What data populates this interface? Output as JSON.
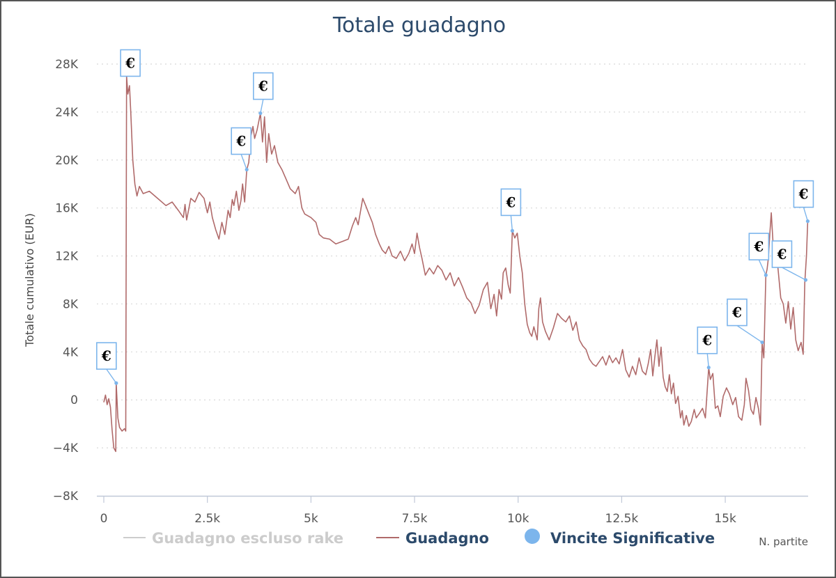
{
  "chart_data": {
    "type": "line",
    "title": "Totale guadagno",
    "ylabel": "Totale cumulativo (EUR)",
    "xlabel": "N. partite",
    "xlim": [
      0,
      17000
    ],
    "ylim": [
      -8000,
      28000
    ],
    "x_ticks": [
      0,
      2500,
      5000,
      7500,
      10000,
      12500,
      15000
    ],
    "x_tick_labels": [
      "0",
      "2.5k",
      "5k",
      "7.5k",
      "10k",
      "12.5k",
      "15k"
    ],
    "y_ticks": [
      -8000,
      -4000,
      0,
      4000,
      8000,
      12000,
      16000,
      20000,
      24000,
      28000
    ],
    "y_tick_labels": [
      "−8K",
      "−4K",
      "0",
      "4K",
      "8K",
      "12K",
      "16K",
      "20K",
      "24K",
      "28K"
    ],
    "grid": "horizontal dotted",
    "colors": {
      "guadagno": "#b06a6a",
      "excluded": "#cccccc",
      "flags": "#7cb5ec",
      "title": "#2c4a6b"
    },
    "legend": {
      "position": "bottom",
      "items": [
        {
          "label": "Guadagno escluso rake",
          "state": "hidden"
        },
        {
          "label": "Guadagno",
          "state": "visible"
        },
        {
          "label": "Vincite Significative",
          "state": "visible"
        }
      ]
    },
    "series": [
      {
        "name": "Guadagno",
        "points": [
          [
            0,
            -200
          ],
          [
            40,
            400
          ],
          [
            80,
            -400
          ],
          [
            120,
            100
          ],
          [
            160,
            -600
          ],
          [
            200,
            -2500
          ],
          [
            240,
            -4000
          ],
          [
            290,
            -4300
          ],
          [
            300,
            1400
          ],
          [
            340,
            -1500
          ],
          [
            380,
            -2300
          ],
          [
            440,
            -2600
          ],
          [
            500,
            -2400
          ],
          [
            530,
            -2600
          ],
          [
            550,
            27000
          ],
          [
            580,
            25500
          ],
          [
            620,
            26200
          ],
          [
            650,
            24000
          ],
          [
            700,
            20000
          ],
          [
            750,
            18000
          ],
          [
            800,
            17000
          ],
          [
            860,
            17800
          ],
          [
            950,
            17200
          ],
          [
            1100,
            17400
          ],
          [
            1300,
            16800
          ],
          [
            1500,
            16200
          ],
          [
            1650,
            16500
          ],
          [
            1800,
            15800
          ],
          [
            1920,
            15200
          ],
          [
            1960,
            16300
          ],
          [
            2000,
            15000
          ],
          [
            2100,
            16800
          ],
          [
            2200,
            16500
          ],
          [
            2300,
            17300
          ],
          [
            2420,
            16800
          ],
          [
            2500,
            15600
          ],
          [
            2560,
            16500
          ],
          [
            2620,
            15200
          ],
          [
            2700,
            14200
          ],
          [
            2780,
            13400
          ],
          [
            2850,
            14800
          ],
          [
            2920,
            13800
          ],
          [
            3000,
            15800
          ],
          [
            3050,
            15200
          ],
          [
            3100,
            16700
          ],
          [
            3140,
            16200
          ],
          [
            3200,
            17400
          ],
          [
            3260,
            15800
          ],
          [
            3310,
            16600
          ],
          [
            3350,
            18000
          ],
          [
            3400,
            16500
          ],
          [
            3450,
            19200
          ],
          [
            3500,
            19800
          ],
          [
            3550,
            22000
          ],
          [
            3600,
            22800
          ],
          [
            3640,
            21800
          ],
          [
            3700,
            22500
          ],
          [
            3780,
            23900
          ],
          [
            3830,
            21500
          ],
          [
            3880,
            23600
          ],
          [
            3930,
            19800
          ],
          [
            3980,
            22200
          ],
          [
            4050,
            20500
          ],
          [
            4120,
            21200
          ],
          [
            4200,
            19800
          ],
          [
            4300,
            19200
          ],
          [
            4400,
            18400
          ],
          [
            4500,
            17600
          ],
          [
            4620,
            17200
          ],
          [
            4700,
            17800
          ],
          [
            4780,
            16000
          ],
          [
            4850,
            15500
          ],
          [
            5000,
            15200
          ],
          [
            5120,
            14800
          ],
          [
            5200,
            13800
          ],
          [
            5300,
            13500
          ],
          [
            5450,
            13400
          ],
          [
            5600,
            13000
          ],
          [
            5750,
            13200
          ],
          [
            5900,
            13400
          ],
          [
            6000,
            14500
          ],
          [
            6080,
            15200
          ],
          [
            6140,
            14600
          ],
          [
            6200,
            15800
          ],
          [
            6250,
            16800
          ],
          [
            6320,
            16200
          ],
          [
            6400,
            15500
          ],
          [
            6480,
            14800
          ],
          [
            6560,
            13800
          ],
          [
            6650,
            13000
          ],
          [
            6720,
            12500
          ],
          [
            6800,
            12200
          ],
          [
            6880,
            12800
          ],
          [
            6960,
            12000
          ],
          [
            7060,
            11800
          ],
          [
            7160,
            12400
          ],
          [
            7260,
            11600
          ],
          [
            7360,
            12200
          ],
          [
            7440,
            13000
          ],
          [
            7500,
            12200
          ],
          [
            7560,
            13900
          ],
          [
            7620,
            12700
          ],
          [
            7680,
            11800
          ],
          [
            7760,
            10400
          ],
          [
            7860,
            11000
          ],
          [
            7960,
            10500
          ],
          [
            8060,
            11200
          ],
          [
            8160,
            10800
          ],
          [
            8260,
            10000
          ],
          [
            8360,
            10600
          ],
          [
            8460,
            9500
          ],
          [
            8560,
            10200
          ],
          [
            8660,
            9400
          ],
          [
            8760,
            8500
          ],
          [
            8860,
            8100
          ],
          [
            8960,
            7200
          ],
          [
            9060,
            7900
          ],
          [
            9160,
            9200
          ],
          [
            9260,
            9800
          ],
          [
            9340,
            7600
          ],
          [
            9420,
            8800
          ],
          [
            9480,
            7000
          ],
          [
            9540,
            9200
          ],
          [
            9600,
            8400
          ],
          [
            9640,
            10600
          ],
          [
            9700,
            11000
          ],
          [
            9760,
            9600
          ],
          [
            9810,
            8900
          ],
          [
            9860,
            14100
          ],
          [
            9920,
            13500
          ],
          [
            9980,
            13900
          ],
          [
            10040,
            12000
          ],
          [
            10100,
            10600
          ],
          [
            10160,
            8000
          ],
          [
            10220,
            6300
          ],
          [
            10280,
            5600
          ],
          [
            10330,
            5300
          ],
          [
            10380,
            6100
          ],
          [
            10460,
            5000
          ],
          [
            10500,
            7600
          ],
          [
            10540,
            8500
          ],
          [
            10590,
            6500
          ],
          [
            10660,
            5700
          ],
          [
            10750,
            5000
          ],
          [
            10850,
            6000
          ],
          [
            10950,
            7200
          ],
          [
            11050,
            6800
          ],
          [
            11150,
            6500
          ],
          [
            11240,
            7000
          ],
          [
            11320,
            5800
          ],
          [
            11400,
            6500
          ],
          [
            11480,
            5000
          ],
          [
            11560,
            4500
          ],
          [
            11640,
            4200
          ],
          [
            11720,
            3400
          ],
          [
            11800,
            3000
          ],
          [
            11880,
            2800
          ],
          [
            11960,
            3200
          ],
          [
            12040,
            3600
          ],
          [
            12120,
            2900
          ],
          [
            12200,
            3700
          ],
          [
            12280,
            3100
          ],
          [
            12360,
            3500
          ],
          [
            12440,
            3000
          ],
          [
            12520,
            4200
          ],
          [
            12600,
            2500
          ],
          [
            12680,
            1900
          ],
          [
            12760,
            2800
          ],
          [
            12840,
            2100
          ],
          [
            12920,
            3500
          ],
          [
            13000,
            2400
          ],
          [
            13080,
            2100
          ],
          [
            13140,
            3000
          ],
          [
            13200,
            4200
          ],
          [
            13250,
            2000
          ],
          [
            13300,
            3600
          ],
          [
            13350,
            5000
          ],
          [
            13400,
            2800
          ],
          [
            13450,
            4400
          ],
          [
            13500,
            1900
          ],
          [
            13550,
            1100
          ],
          [
            13600,
            700
          ],
          [
            13650,
            2100
          ],
          [
            13700,
            500
          ],
          [
            13750,
            1400
          ],
          [
            13800,
            -300
          ],
          [
            13860,
            300
          ],
          [
            13920,
            -1500
          ],
          [
            13960,
            -900
          ],
          [
            14000,
            -2100
          ],
          [
            14060,
            -1300
          ],
          [
            14120,
            -2200
          ],
          [
            14180,
            -1800
          ],
          [
            14250,
            -800
          ],
          [
            14300,
            -1500
          ],
          [
            14380,
            -1100
          ],
          [
            14450,
            -700
          ],
          [
            14520,
            -1500
          ],
          [
            14600,
            2700
          ],
          [
            14640,
            1700
          ],
          [
            14700,
            2200
          ],
          [
            14760,
            -700
          ],
          [
            14820,
            -500
          ],
          [
            14880,
            -1400
          ],
          [
            14950,
            300
          ],
          [
            15030,
            1000
          ],
          [
            15100,
            500
          ],
          [
            15180,
            -400
          ],
          [
            15250,
            200
          ],
          [
            15320,
            -1400
          ],
          [
            15400,
            -1700
          ],
          [
            15460,
            -400
          ],
          [
            15500,
            1800
          ],
          [
            15560,
            800
          ],
          [
            15620,
            -800
          ],
          [
            15680,
            -1200
          ],
          [
            15740,
            200
          ],
          [
            15800,
            -700
          ],
          [
            15850,
            -2100
          ],
          [
            15890,
            4800
          ],
          [
            15930,
            3500
          ],
          [
            15980,
            10400
          ],
          [
            16010,
            10900
          ],
          [
            16040,
            11800
          ],
          [
            16080,
            14100
          ],
          [
            16110,
            15600
          ],
          [
            16140,
            13800
          ],
          [
            16180,
            11500
          ],
          [
            16230,
            12500
          ],
          [
            16290,
            10300
          ],
          [
            16340,
            8500
          ],
          [
            16400,
            8000
          ],
          [
            16460,
            6400
          ],
          [
            16520,
            8200
          ],
          [
            16580,
            5900
          ],
          [
            16640,
            7700
          ],
          [
            16700,
            5000
          ],
          [
            16760,
            4100
          ],
          [
            16830,
            4800
          ],
          [
            16880,
            3800
          ],
          [
            16920,
            9800
          ],
          [
            16960,
            12000
          ],
          [
            16990,
            14900
          ]
        ]
      }
    ],
    "flags": [
      {
        "label": "€",
        "x": 300,
        "y": 1400
      },
      {
        "label": "€",
        "x": 540,
        "y": 27100
      },
      {
        "label": "€",
        "x": 3450,
        "y": 19200
      },
      {
        "label": "€",
        "x": 3780,
        "y": 23900
      },
      {
        "label": "€",
        "x": 9860,
        "y": 14100
      },
      {
        "label": "€",
        "x": 14600,
        "y": 2700
      },
      {
        "label": "€",
        "x": 15890,
        "y": 4800
      },
      {
        "label": "€",
        "x": 15980,
        "y": 10400
      },
      {
        "label": "€",
        "x": 16940,
        "y": 10000
      },
      {
        "label": "€",
        "x": 16990,
        "y": 14900
      }
    ]
  }
}
